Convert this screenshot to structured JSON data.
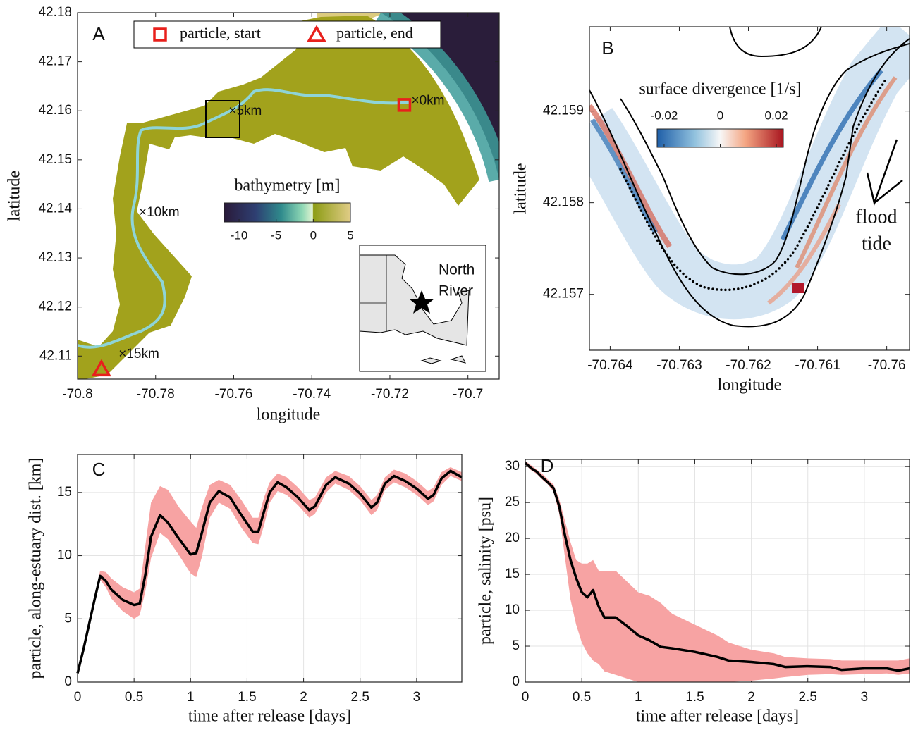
{
  "chart_data": [
    {
      "type": "map",
      "panel_label": "A",
      "xlabel": "longitude",
      "ylabel": "latitude",
      "xlim": [
        -70.8,
        -70.692
      ],
      "ylim": [
        42.1053,
        42.18
      ],
      "xticks": [
        -70.8,
        -70.78,
        -70.76,
        -70.74,
        -70.72,
        -70.7
      ],
      "yticks": [
        42.11,
        42.12,
        42.13,
        42.14,
        42.15,
        42.16,
        42.17,
        42.18
      ],
      "markers": [
        {
          "name": "particle, start",
          "shape": "square",
          "color": "#e8201c",
          "x": -70.7163,
          "y": 42.1612
        },
        {
          "name": "particle, end",
          "shape": "triangle",
          "color": "#e8201c",
          "x": -70.7939,
          "y": 42.1074
        }
      ],
      "annotations": [
        {
          "text": "×0km",
          "x": -70.7134,
          "y": 42.162
        },
        {
          "text": "×5km",
          "x": -70.7602,
          "y": 42.1599
        },
        {
          "text": "×10km",
          "x": -70.7832,
          "y": 42.1392
        },
        {
          "text": "×15km",
          "x": -70.7884,
          "y": 42.1103
        }
      ],
      "colorbar": {
        "label": "bathymetry [m]",
        "clim": [
          -12,
          5
        ],
        "ticks": [
          -10,
          -5,
          0,
          5
        ]
      },
      "inset": {
        "lines": [
          "North",
          "River"
        ]
      }
    },
    {
      "type": "map",
      "panel_label": "B",
      "xlabel": "longitude",
      "ylabel": "latitude",
      "xlim": [
        -70.7643,
        -70.75967
      ],
      "ylim": [
        42.15639,
        42.15992
      ],
      "xticks": [
        -70.764,
        -70.763,
        -70.762,
        -70.761,
        -70.76
      ],
      "yticks": [
        42.157,
        42.158,
        42.159
      ],
      "colorbar": {
        "label": "surface divergence [1/s]",
        "clim": [
          -0.0225,
          0.0225
        ],
        "ticks": [
          -0.02,
          0,
          0.02
        ]
      },
      "annotation_lines": [
        "flood",
        "tide"
      ]
    },
    {
      "type": "line",
      "panel_label": "C",
      "xlabel": "time after release [days]",
      "ylabel": "particle, along-estuary dist. [km]",
      "xlim": [
        0,
        3.4
      ],
      "ylim": [
        0,
        18
      ],
      "xticks": [
        0,
        0.5,
        1,
        1.5,
        2,
        2.5,
        3
      ],
      "yticks": [
        0,
        5,
        10,
        15
      ],
      "grid": true,
      "x": [
        0,
        0.05,
        0.1,
        0.15,
        0.2,
        0.25,
        0.3,
        0.4,
        0.5,
        0.55,
        0.6,
        0.65,
        0.73,
        0.8,
        0.9,
        1.0,
        1.05,
        1.1,
        1.17,
        1.25,
        1.35,
        1.45,
        1.55,
        1.6,
        1.65,
        1.7,
        1.77,
        1.85,
        1.95,
        2.05,
        2.1,
        2.2,
        2.28,
        2.4,
        2.5,
        2.6,
        2.65,
        2.72,
        2.8,
        2.9,
        3.0,
        3.1,
        3.15,
        3.22,
        3.3,
        3.4
      ],
      "series": [
        {
          "color": "#000000",
          "values": [
            0.7,
            2.5,
            4.5,
            6.5,
            8.4,
            8.0,
            7.3,
            6.5,
            6.1,
            6.2,
            8.5,
            11.5,
            13.2,
            12.6,
            11.3,
            10.1,
            10.2,
            11.8,
            14.2,
            15.1,
            14.6,
            13.2,
            11.9,
            11.9,
            13.5,
            15.0,
            15.8,
            15.4,
            14.6,
            13.6,
            13.9,
            15.6,
            16.2,
            15.7,
            14.9,
            13.8,
            14.2,
            15.7,
            16.3,
            15.9,
            15.3,
            14.5,
            14.8,
            16.1,
            16.7,
            16.2
          ]
        }
      ],
      "band": {
        "color": "#f7a3a3",
        "lower": [
          0.7,
          2.5,
          4.5,
          6.4,
          8.1,
          7.5,
          6.6,
          5.6,
          5.0,
          5.3,
          7.2,
          9.8,
          11.8,
          11.3,
          10.0,
          8.6,
          8.3,
          9.9,
          13.0,
          14.2,
          13.7,
          12.2,
          11.0,
          10.9,
          12.4,
          14.2,
          15.1,
          14.8,
          14.0,
          13.0,
          13.3,
          15.0,
          15.7,
          15.2,
          14.4,
          13.2,
          13.6,
          15.2,
          15.8,
          15.4,
          14.8,
          14.0,
          14.3,
          15.6,
          16.3,
          15.9
        ],
        "upper": [
          0.7,
          2.6,
          4.7,
          6.8,
          8.8,
          8.7,
          8.2,
          7.5,
          7.1,
          7.4,
          10.8,
          14.2,
          15.5,
          15.2,
          13.8,
          12.7,
          12.2,
          13.8,
          15.6,
          16.0,
          15.6,
          14.4,
          13.0,
          13.0,
          14.6,
          15.8,
          16.5,
          16.2,
          15.4,
          14.4,
          14.6,
          16.2,
          16.7,
          16.3,
          15.5,
          14.4,
          14.8,
          16.2,
          16.8,
          16.5,
          15.9,
          15.1,
          15.4,
          16.6,
          17.0,
          16.6
        ]
      }
    },
    {
      "type": "line",
      "panel_label": "D",
      "xlabel": "time after release [days]",
      "ylabel": "particle, salinity [psu]",
      "xlim": [
        0,
        3.4
      ],
      "ylim": [
        0,
        31
      ],
      "xticks": [
        0,
        0.5,
        1,
        1.5,
        2,
        2.5,
        3
      ],
      "yticks": [
        0,
        5,
        10,
        15,
        20,
        25,
        30
      ],
      "grid": true,
      "x": [
        0,
        0.05,
        0.1,
        0.15,
        0.2,
        0.25,
        0.3,
        0.35,
        0.4,
        0.45,
        0.5,
        0.55,
        0.6,
        0.65,
        0.7,
        0.8,
        0.9,
        1.0,
        1.1,
        1.2,
        1.3,
        1.5,
        1.7,
        1.8,
        2.0,
        2.2,
        2.3,
        2.5,
        2.7,
        2.8,
        3.0,
        3.2,
        3.3,
        3.4
      ],
      "series": [
        {
          "color": "#000000",
          "values": [
            30.5,
            29.8,
            29.3,
            28.5,
            27.8,
            27.0,
            24.5,
            20.5,
            17.0,
            14.5,
            12.5,
            11.8,
            12.8,
            10.5,
            9.0,
            9.0,
            7.8,
            6.5,
            5.8,
            4.9,
            4.7,
            4.2,
            3.5,
            3.0,
            2.8,
            2.5,
            2.1,
            2.2,
            2.1,
            1.7,
            1.9,
            1.9,
            1.6,
            1.9
          ]
        }
      ],
      "band": {
        "color": "#f7a3a3",
        "lower": [
          30.3,
          29.5,
          29.0,
          28.2,
          27.5,
          26.5,
          23.5,
          17.5,
          11.5,
          8.0,
          5.5,
          4.0,
          3.0,
          2.5,
          1.5,
          1.0,
          0.5,
          0,
          0,
          0,
          0,
          0,
          0,
          0,
          0.2,
          0.5,
          0.7,
          1.0,
          1.1,
          1.0,
          1.1,
          1.2,
          1.0,
          1.2
        ],
        "upper": [
          30.8,
          30.2,
          29.6,
          29.0,
          28.2,
          27.5,
          25.5,
          22.5,
          19.5,
          17.0,
          16.5,
          16.5,
          17.0,
          15.5,
          15.5,
          15.5,
          14.0,
          12.5,
          12.0,
          11.0,
          9.5,
          8.0,
          6.5,
          5.5,
          4.5,
          4.0,
          3.5,
          3.3,
          3.2,
          3.0,
          3.0,
          3.0,
          3.0,
          3.3
        ]
      }
    }
  ]
}
